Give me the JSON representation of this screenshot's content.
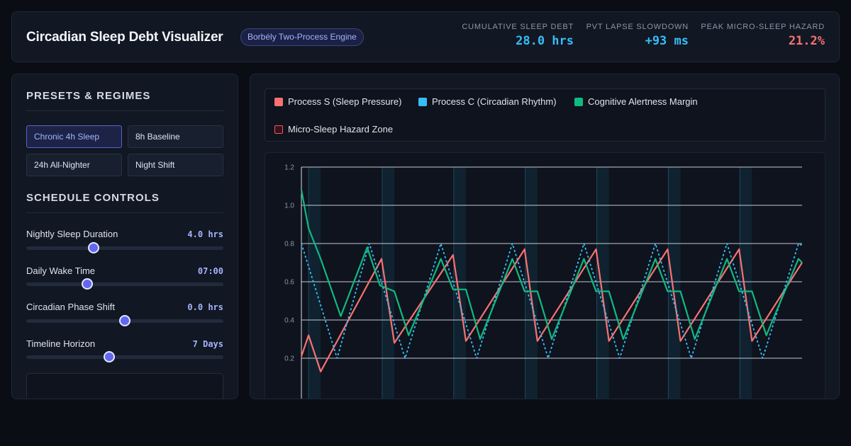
{
  "header": {
    "title": "Circadian Sleep Debt Visualizer",
    "badge": "Borbély Two-Process Engine",
    "stats": [
      {
        "label": "Cumulative Sleep Debt",
        "value": "28.0 hrs",
        "color": "#38bdf8"
      },
      {
        "label": "PVT Lapse Slowdown",
        "value": "+93 ms",
        "color": "#38bdf8"
      },
      {
        "label": "Peak Micro-Sleep Hazard",
        "value": "21.2%",
        "color": "#f87171"
      }
    ]
  },
  "sidebar": {
    "presets_title": "PRESETS & REGIMES",
    "presets": [
      {
        "label": "Chronic 4h Sleep",
        "active": true
      },
      {
        "label": "8h Baseline",
        "active": false
      },
      {
        "label": "24h All-Nighter",
        "active": false
      },
      {
        "label": "Night Shift",
        "active": false
      }
    ],
    "controls_title": "SCHEDULE CONTROLS",
    "controls": [
      {
        "label": "Nightly Sleep Duration",
        "value": "4.0 hrs",
        "fraction": 0.34
      },
      {
        "label": "Daily Wake Time",
        "value": "07:00",
        "fraction": 0.31
      },
      {
        "label": "Circadian Phase Shift",
        "value": "0.0 hrs",
        "fraction": 0.5
      },
      {
        "label": "Timeline Horizon",
        "value": "7 Days",
        "fraction": 0.42
      }
    ]
  },
  "legend": {
    "items": [
      {
        "label": "Process S (Sleep Pressure)",
        "color": "#f87171"
      },
      {
        "label": "Process C (Circadian Rhythm)",
        "color": "#38bdf8"
      },
      {
        "label": "Cognitive Alertness Margin",
        "color": "#10b981"
      },
      {
        "label": "Micro-Sleep Hazard Zone",
        "color": "#7f1d1d"
      }
    ]
  },
  "chart_data": {
    "type": "line",
    "x_unit": "days",
    "xlim": [
      0,
      7
    ],
    "ylim": [
      0.0,
      1.2
    ],
    "yticks": [
      "1.2",
      "1.0",
      "0.8",
      "0.6",
      "0.4",
      "0.2"
    ],
    "ytick_values": [
      1.2,
      1.0,
      0.8,
      0.6,
      0.4,
      0.2
    ],
    "grid": true,
    "sleep_windows_days": [
      [
        0.1,
        0.27
      ],
      [
        1.13,
        1.3
      ],
      [
        2.13,
        2.3
      ],
      [
        3.13,
        3.3
      ],
      [
        4.13,
        4.3
      ],
      [
        5.13,
        5.3
      ],
      [
        6.13,
        6.3
      ]
    ],
    "series": [
      {
        "name": "Process S (Sleep Pressure)",
        "color": "#f87171",
        "style": "solid",
        "x": [
          0,
          0.1,
          0.27,
          1.12,
          1.3,
          2.12,
          2.3,
          3.12,
          3.3,
          4.12,
          4.3,
          5.12,
          5.3,
          6.12,
          6.3,
          7.0
        ],
        "y": [
          0.21,
          0.32,
          0.13,
          0.72,
          0.28,
          0.74,
          0.29,
          0.77,
          0.29,
          0.77,
          0.29,
          0.77,
          0.29,
          0.77,
          0.29,
          0.7
        ]
      },
      {
        "name": "Process C (Circadian Rhythm)",
        "color": "#38bdf8",
        "style": "dashed",
        "x": [
          0,
          0.5,
          0.95,
          1.45,
          1.95,
          2.45,
          2.95,
          3.45,
          3.95,
          4.45,
          4.95,
          5.45,
          5.95,
          6.45,
          6.95,
          7.0
        ],
        "y": [
          0.8,
          0.2,
          0.8,
          0.2,
          0.8,
          0.2,
          0.8,
          0.2,
          0.8,
          0.2,
          0.8,
          0.2,
          0.8,
          0.2,
          0.8,
          0.79
        ]
      },
      {
        "name": "Cognitive Alertness Margin",
        "color": "#10b981",
        "style": "solid",
        "x": [
          0,
          0.1,
          0.27,
          0.55,
          0.92,
          1.1,
          1.3,
          1.5,
          1.95,
          2.12,
          2.3,
          2.5,
          2.95,
          3.12,
          3.3,
          3.5,
          3.95,
          4.12,
          4.3,
          4.5,
          4.95,
          5.12,
          5.3,
          5.5,
          5.95,
          6.12,
          6.3,
          6.5,
          6.95,
          7.0
        ],
        "y": [
          1.08,
          0.88,
          0.72,
          0.42,
          0.78,
          0.58,
          0.55,
          0.32,
          0.72,
          0.56,
          0.56,
          0.3,
          0.72,
          0.55,
          0.55,
          0.3,
          0.72,
          0.55,
          0.55,
          0.3,
          0.72,
          0.55,
          0.55,
          0.3,
          0.72,
          0.55,
          0.55,
          0.32,
          0.72,
          0.7
        ]
      }
    ]
  }
}
